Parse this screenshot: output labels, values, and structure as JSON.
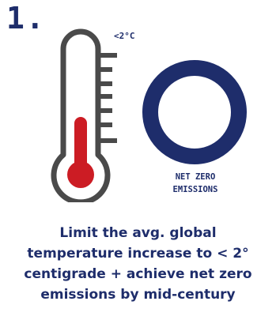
{
  "step": {
    "number": "1."
  },
  "thermometer": {
    "icon": "thermometer-icon",
    "threshold_label": "<2°C",
    "colors": {
      "outline": "#4a4a4a",
      "fill": "#cc1c24"
    }
  },
  "net_zero": {
    "icon": "ring-icon",
    "label": "NET ZERO\nEMISSIONS",
    "color": "#1e2d6b"
  },
  "caption": {
    "text": "Limit the avg. global\ntemperature increase to < 2°\ncentigrade + achieve net zero\nemissions by mid-century"
  },
  "colors": {
    "navy": "#1e2d6b",
    "red": "#cc1c24",
    "gray": "#4a4a4a"
  }
}
